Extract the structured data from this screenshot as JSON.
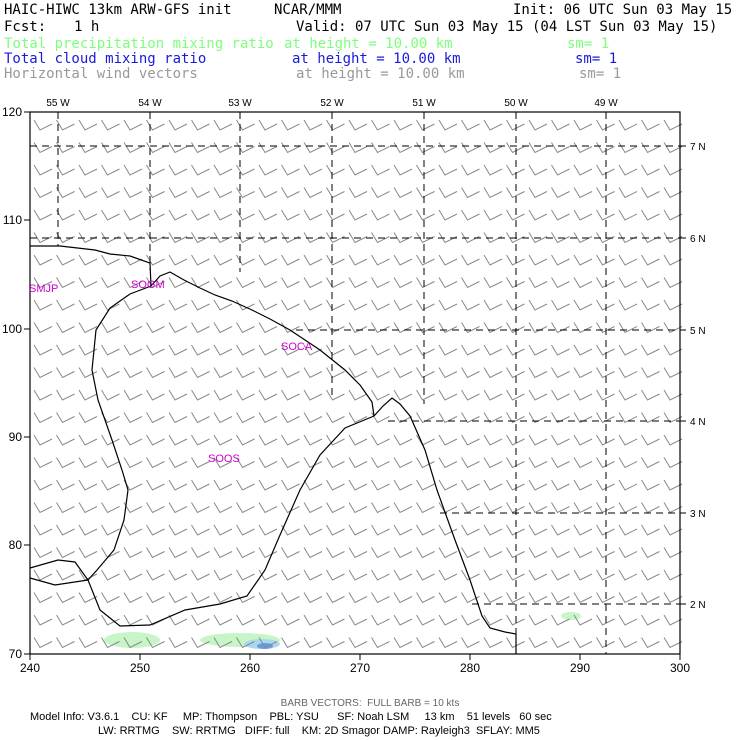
{
  "header": {
    "model_title": "HAIC-HIWC 13km ARW-GFS init",
    "center": "NCAR/MMM",
    "init": "Init: 06 UTC Sun 03 May 15",
    "fcst_label": "Fcst:",
    "fcst_value": "1 h",
    "valid": "Valid: 07 UTC Sun 03 May 15 (04 LST Sun 03 May 15)",
    "fields": [
      {
        "name": "Total precipitation mixing ratio",
        "height": "at height = 10.00 km",
        "sm": "sm= 1",
        "color": "#7cff7c"
      },
      {
        "name": "Total cloud mixing ratio",
        "height": "at height = 10.00 km",
        "sm": "sm= 1",
        "color": "#1a1adc"
      },
      {
        "name": "Horizontal wind vectors",
        "height": "at height = 10.00 km",
        "sm": "sm= 1",
        "color": "#999999"
      }
    ]
  },
  "map": {
    "x_ticks": [
      "240",
      "250",
      "260",
      "270",
      "280",
      "290",
      "300"
    ],
    "y_ticks": [
      "70",
      "80",
      "90",
      "100",
      "110",
      "120"
    ],
    "lon_labels": [
      "55 W",
      "54 W",
      "53 W",
      "52 W",
      "51 W",
      "50 W",
      "49 W"
    ],
    "lat_labels": [
      "7 N",
      "6 N",
      "5 N",
      "4 N",
      "3 N",
      "2 N"
    ],
    "stations": [
      "SMJP",
      "SOGM",
      "SOCA",
      "SOOS"
    ],
    "station_color": "#cc00cc",
    "barb_color": "#888888",
    "coast_color": "#000000"
  },
  "footer": {
    "barb_note": "BARB VECTORS:  FULL BARB = 10 kts",
    "line1": "Model Info: V3.6.1    CU: KF     MP: Thompson    PBL: YSU      SF: Noah LSM     13 km    51 levels   60 sec",
    "line2": "LW: RRTMG    SW: RRTMG   DIFF: full    KM: 2D Smagor DAMP: Rayleigh3  SFLAY: MM5"
  }
}
